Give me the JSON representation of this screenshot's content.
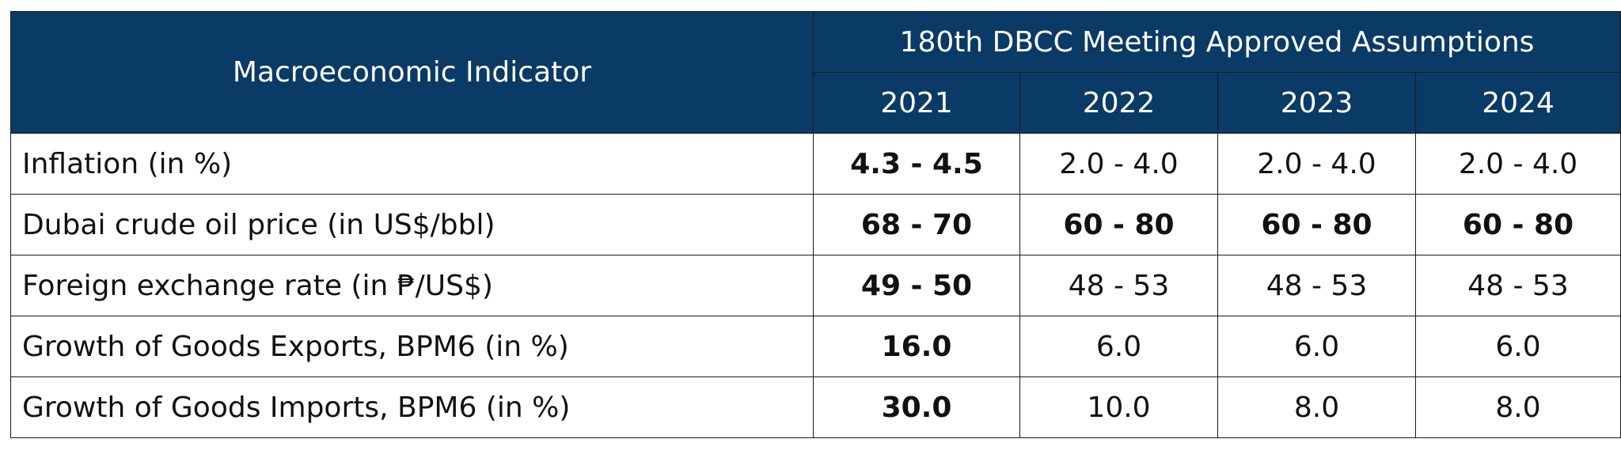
{
  "table": {
    "indicator_header": "Macroeconomic Indicator",
    "group_header": "180th DBCC Meeting Approved Assumptions",
    "years": [
      "2021",
      "2022",
      "2023",
      "2024"
    ],
    "rows": [
      {
        "label": "Inflation (in %)",
        "values": [
          "4.3 - 4.5",
          "2.0 - 4.0",
          "2.0 - 4.0",
          "2.0 - 4.0"
        ],
        "bold": [
          true,
          false,
          false,
          false
        ]
      },
      {
        "label": "Dubai crude oil price (in US$/bbl)",
        "values": [
          "68 - 70",
          "60 - 80",
          "60 - 80",
          "60 - 80"
        ],
        "bold": [
          true,
          true,
          true,
          true
        ]
      },
      {
        "label": "Foreign exchange rate (in ₱/US$)",
        "values": [
          "49 - 50",
          "48 - 53",
          "48 - 53",
          "48 - 53"
        ],
        "bold": [
          true,
          false,
          false,
          false
        ]
      },
      {
        "label": "Growth of Goods Exports, BPM6 (in %)",
        "values": [
          "16.0",
          "6.0",
          "6.0",
          "6.0"
        ],
        "bold": [
          true,
          false,
          false,
          false
        ]
      },
      {
        "label": "Growth of Goods Imports, BPM6 (in %)",
        "values": [
          "30.0",
          "10.0",
          "8.0",
          "8.0"
        ],
        "bold": [
          true,
          false,
          false,
          false
        ]
      }
    ]
  },
  "colors": {
    "header_background": "#0a3a66",
    "header_text": "#ffffff",
    "border": "#1a1a1a"
  }
}
